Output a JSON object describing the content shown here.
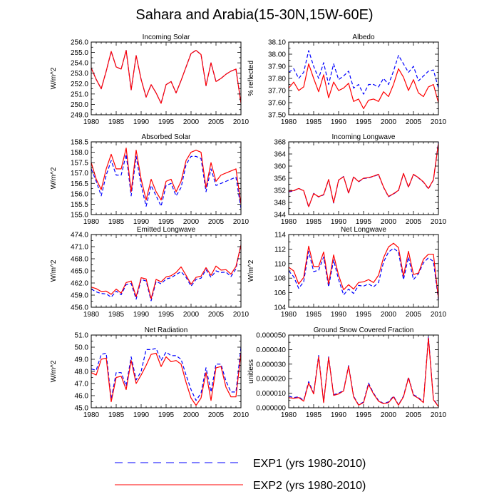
{
  "figure_title": "Sahara and Arabia(15-30N,15W-60E)",
  "legend": [
    {
      "label": "EXP1 (yrs 1980-2010)",
      "color": "#0000ff",
      "dash": "dashed"
    },
    {
      "label": "EXP2 (yrs 1980-2010)",
      "color": "#ff0000",
      "dash": "solid"
    }
  ],
  "chart_data": [
    {
      "type": "line",
      "title": "Incoming Solar",
      "ylabel": "W/m^2",
      "xlim": [
        1980,
        2010
      ],
      "ylim": [
        249.0,
        256.0
      ],
      "xticks": [
        1980,
        1985,
        1990,
        1995,
        2000,
        2005,
        2010
      ],
      "yticks": [
        249.0,
        250.0,
        251.0,
        252.0,
        253.0,
        254.0,
        255.0,
        256.0
      ],
      "ytick_labels": [
        "249.0",
        "250.0",
        "251.0",
        "252.0",
        "253.0",
        "254.0",
        "255.0",
        "256.0"
      ],
      "x": [
        1980,
        1981,
        1982,
        1983,
        1984,
        1985,
        1986,
        1987,
        1988,
        1989,
        1990,
        1991,
        1992,
        1993,
        1994,
        1995,
        1996,
        1997,
        1998,
        1999,
        2000,
        2001,
        2002,
        2003,
        2004,
        2005,
        2006,
        2007,
        2008,
        2009,
        2010
      ],
      "series": [
        {
          "name": "EXP1 (yrs 1980-2010)",
          "values": [
            253.5,
            252.4,
            251.5,
            253.2,
            255.1,
            253.6,
            253.4,
            255.2,
            251.4,
            254.7,
            252.4,
            250.7,
            251.9,
            251.1,
            250.1,
            251.9,
            252.2,
            251.1,
            252.3,
            253.6,
            254.9,
            255.2,
            254.8,
            251.8,
            254.0,
            252.2,
            252.5,
            252.9,
            253.2,
            253.4,
            250.1
          ]
        },
        {
          "name": "EXP2 (yrs 1980-2010)",
          "values": [
            253.5,
            252.4,
            251.5,
            253.2,
            255.1,
            253.6,
            253.4,
            255.2,
            251.4,
            254.7,
            252.4,
            250.7,
            251.9,
            251.1,
            250.1,
            251.9,
            252.2,
            251.1,
            252.3,
            253.6,
            254.9,
            255.2,
            254.8,
            251.8,
            254.0,
            252.2,
            252.5,
            252.9,
            253.2,
            253.4,
            250.1
          ]
        }
      ]
    },
    {
      "type": "line",
      "title": "Albedo",
      "ylabel": "% reflected",
      "xlim": [
        1980,
        2010
      ],
      "ylim": [
        37.5,
        38.1
      ],
      "xticks": [
        1980,
        1985,
        1990,
        1995,
        2000,
        2005,
        2010
      ],
      "yticks": [
        37.5,
        37.6,
        37.7,
        37.8,
        37.9,
        38.0,
        38.1
      ],
      "ytick_labels": [
        "37.50",
        "37.60",
        "37.70",
        "37.80",
        "37.90",
        "38.00",
        "38.10"
      ],
      "x": [
        1980,
        1981,
        1982,
        1983,
        1984,
        1985,
        1986,
        1987,
        1988,
        1989,
        1990,
        1991,
        1992,
        1993,
        1994,
        1995,
        1996,
        1997,
        1998,
        1999,
        2000,
        2001,
        2002,
        2003,
        2004,
        2005,
        2006,
        2007,
        2008,
        2009,
        2010
      ],
      "series": [
        {
          "name": "EXP1 (yrs 1980-2010)",
          "values": [
            37.85,
            37.88,
            37.8,
            37.85,
            38.03,
            37.9,
            37.8,
            37.93,
            37.75,
            37.92,
            37.79,
            37.82,
            37.86,
            37.72,
            37.75,
            37.67,
            37.75,
            37.75,
            37.73,
            37.8,
            37.75,
            37.86,
            37.99,
            37.92,
            37.85,
            37.9,
            37.78,
            37.82,
            37.86,
            37.87,
            37.72
          ]
        },
        {
          "name": "EXP2 (yrs 1980-2010)",
          "values": [
            37.72,
            37.77,
            37.7,
            37.73,
            37.92,
            37.8,
            37.69,
            37.83,
            37.64,
            37.77,
            37.7,
            37.72,
            37.76,
            37.61,
            37.63,
            37.55,
            37.62,
            37.63,
            37.61,
            37.69,
            37.65,
            37.75,
            37.88,
            37.81,
            37.7,
            37.79,
            37.68,
            37.65,
            37.73,
            37.75,
            37.6
          ]
        }
      ]
    },
    {
      "type": "line",
      "title": "Absorbed Solar",
      "ylabel": "W/m^2",
      "xlim": [
        1980,
        2010
      ],
      "ylim": [
        155.0,
        158.5
      ],
      "xticks": [
        1980,
        1985,
        1990,
        1995,
        2000,
        2005,
        2010
      ],
      "yticks": [
        155.0,
        155.5,
        156.0,
        156.5,
        157.0,
        157.5,
        158.0,
        158.5
      ],
      "ytick_labels": [
        "155.0",
        "155.5",
        "156.0",
        "156.5",
        "157.0",
        "157.5",
        "158.0",
        "158.5"
      ],
      "x": [
        1980,
        1981,
        1982,
        1983,
        1984,
        1985,
        1986,
        1987,
        1988,
        1989,
        1990,
        1991,
        1992,
        1993,
        1994,
        1995,
        1996,
        1997,
        1998,
        1999,
        2000,
        2001,
        2002,
        2003,
        2004,
        2005,
        2006,
        2007,
        2008,
        2009,
        2010
      ],
      "series": [
        {
          "name": "EXP1 (yrs 1980-2010)",
          "values": [
            157.2,
            156.6,
            155.9,
            156.9,
            157.6,
            156.9,
            156.9,
            157.9,
            155.9,
            157.8,
            156.4,
            155.4,
            156.4,
            155.9,
            155.4,
            156.4,
            156.5,
            155.9,
            156.3,
            157.4,
            157.8,
            157.8,
            157.7,
            156.1,
            157.2,
            156.4,
            156.5,
            156.6,
            156.7,
            156.8,
            155.3
          ]
        },
        {
          "name": "EXP2 (yrs 1980-2010)",
          "values": [
            157.5,
            156.7,
            156.2,
            157.2,
            157.9,
            157.2,
            157.2,
            158.2,
            156.1,
            158.1,
            156.7,
            155.7,
            156.7,
            156.1,
            155.7,
            156.6,
            156.7,
            156.1,
            156.6,
            157.6,
            158.0,
            158.1,
            158.0,
            156.3,
            157.5,
            156.6,
            156.9,
            157.0,
            157.1,
            157.2,
            155.5
          ]
        }
      ]
    },
    {
      "type": "line",
      "title": "Incoming Longwave",
      "ylabel": "",
      "xlim": [
        1980,
        2010
      ],
      "ylim": [
        344,
        368
      ],
      "xticks": [
        1980,
        1985,
        1990,
        1995,
        2000,
        2005,
        2010
      ],
      "yticks": [
        344,
        348,
        352,
        356,
        360,
        364,
        368
      ],
      "ytick_labels": [
        "344",
        "348",
        "352",
        "356",
        "360",
        "364",
        "368"
      ],
      "x": [
        1980,
        1981,
        1982,
        1983,
        1984,
        1985,
        1986,
        1987,
        1988,
        1989,
        1990,
        1991,
        1992,
        1993,
        1994,
        1995,
        1996,
        1997,
        1998,
        1999,
        2000,
        2001,
        2002,
        2003,
        2004,
        2005,
        2006,
        2007,
        2008,
        2009,
        2010
      ],
      "series": [
        {
          "name": "EXP1 (yrs 1980-2010)",
          "values": [
            351.5,
            351.8,
            352.7,
            351.8,
            346.5,
            351.0,
            349.8,
            350.5,
            355.5,
            347.8,
            355.3,
            356.6,
            351.0,
            356.5,
            354.8,
            355.9,
            356.1,
            356.6,
            357.2,
            353.0,
            349.9,
            350.8,
            351.9,
            357.5,
            353.0,
            357.2,
            356.1,
            354.7,
            352.5,
            355.4,
            368.0
          ]
        },
        {
          "name": "EXP2 (yrs 1980-2010)",
          "values": [
            351.7,
            351.9,
            352.6,
            351.9,
            346.6,
            350.9,
            349.9,
            350.6,
            355.6,
            347.9,
            355.4,
            356.5,
            351.1,
            356.4,
            354.9,
            356.0,
            356.2,
            356.7,
            357.3,
            353.1,
            350.0,
            350.9,
            352.0,
            357.6,
            353.1,
            357.3,
            356.2,
            354.8,
            352.6,
            355.5,
            367.5
          ]
        }
      ]
    },
    {
      "type": "line",
      "title": "Emitted Longwave",
      "ylabel": "W/m^2",
      "xlim": [
        1980,
        2010
      ],
      "ylim": [
        456.0,
        474.0
      ],
      "xticks": [
        1980,
        1985,
        1990,
        1995,
        2000,
        2005,
        2010
      ],
      "yticks": [
        456.0,
        459.0,
        462.0,
        465.0,
        468.0,
        471.0,
        474.0
      ],
      "ytick_labels": [
        "456.0",
        "459.0",
        "462.0",
        "465.0",
        "468.0",
        "471.0",
        "474.0"
      ],
      "x": [
        1980,
        1981,
        1982,
        1983,
        1984,
        1985,
        1986,
        1987,
        1988,
        1989,
        1990,
        1991,
        1992,
        1993,
        1994,
        1995,
        1996,
        1997,
        1998,
        1999,
        2000,
        2001,
        2002,
        2003,
        2004,
        2005,
        2006,
        2007,
        2008,
        2009,
        2010
      ],
      "series": [
        {
          "name": "EXP1 (yrs 1980-2010)",
          "values": [
            460.5,
            459.8,
            459.4,
            459.3,
            458.5,
            460.0,
            459.1,
            461.6,
            461.9,
            458.0,
            462.9,
            462.5,
            457.6,
            462.4,
            461.8,
            463.0,
            463.3,
            464.1,
            464.8,
            463.4,
            461.2,
            462.9,
            463.2,
            465.3,
            463.4,
            465.0,
            464.6,
            464.7,
            463.6,
            465.5,
            471.6
          ]
        },
        {
          "name": "EXP2 (yrs 1980-2010)",
          "values": [
            461.0,
            460.6,
            459.9,
            460.0,
            459.2,
            460.5,
            459.5,
            462.1,
            462.5,
            458.6,
            463.3,
            463.0,
            458.1,
            462.9,
            462.3,
            463.5,
            463.8,
            464.6,
            466.0,
            463.9,
            461.7,
            463.4,
            463.7,
            465.8,
            463.9,
            466.2,
            465.2,
            465.3,
            464.2,
            466.1,
            471.4
          ]
        }
      ]
    },
    {
      "type": "line",
      "title": "Net Longwave",
      "ylabel": "W/m^2",
      "xlim": [
        1980,
        2010
      ],
      "ylim": [
        104,
        114
      ],
      "xticks": [
        1980,
        1985,
        1990,
        1995,
        2000,
        2005,
        2010
      ],
      "yticks": [
        104,
        106,
        108,
        110,
        112,
        114
      ],
      "ytick_labels": [
        "104",
        "106",
        "108",
        "110",
        "112",
        "114"
      ],
      "x": [
        1980,
        1981,
        1982,
        1983,
        1984,
        1985,
        1986,
        1987,
        1988,
        1989,
        1990,
        1991,
        1992,
        1993,
        1994,
        1995,
        1996,
        1997,
        1998,
        1999,
        2000,
        2001,
        2002,
        2003,
        2004,
        2005,
        2006,
        2007,
        2008,
        2009,
        2010
      ],
      "series": [
        {
          "name": "EXP1 (yrs 1980-2010)",
          "values": [
            109.0,
            108.2,
            106.6,
            107.5,
            111.7,
            108.9,
            109.1,
            110.9,
            106.8,
            110.5,
            107.8,
            105.7,
            106.5,
            105.9,
            107.0,
            106.9,
            107.2,
            106.8,
            107.4,
            110.2,
            111.6,
            112.1,
            111.6,
            107.8,
            110.9,
            107.8,
            108.6,
            110.1,
            110.8,
            110.3,
            105.0
          ]
        },
        {
          "name": "EXP2 (yrs 1980-2010)",
          "values": [
            109.5,
            109.0,
            107.2,
            108.1,
            112.4,
            109.6,
            109.6,
            111.6,
            107.2,
            111.2,
            108.4,
            106.4,
            107.1,
            106.5,
            107.4,
            107.5,
            107.8,
            107.4,
            108.4,
            110.8,
            112.3,
            112.8,
            112.2,
            108.3,
            111.7,
            108.5,
            108.7,
            110.6,
            111.3,
            111.3,
            105.2
          ]
        }
      ]
    },
    {
      "type": "line",
      "title": "Net Radiation",
      "ylabel": "W/m^2",
      "xlim": [
        1980,
        2010
      ],
      "ylim": [
        45.0,
        51.0
      ],
      "xticks": [
        1980,
        1985,
        1990,
        1995,
        2000,
        2005,
        2010
      ],
      "yticks": [
        45.0,
        46.0,
        47.0,
        48.0,
        49.0,
        50.0,
        51.0
      ],
      "ytick_labels": [
        "45.0",
        "46.0",
        "47.0",
        "48.0",
        "49.0",
        "50.0",
        "51.0"
      ],
      "x": [
        1980,
        1981,
        1982,
        1983,
        1984,
        1985,
        1986,
        1987,
        1988,
        1989,
        1990,
        1991,
        1992,
        1993,
        1994,
        1995,
        1996,
        1997,
        1998,
        1999,
        2000,
        2001,
        2002,
        2003,
        2004,
        2005,
        2006,
        2007,
        2008,
        2009,
        2010
      ],
      "series": [
        {
          "name": "EXP1 (yrs 1980-2010)",
          "values": [
            48.2,
            48.1,
            49.4,
            49.5,
            45.7,
            47.9,
            47.9,
            46.8,
            49.2,
            47.3,
            48.0,
            49.8,
            49.8,
            49.9,
            48.9,
            49.6,
            49.3,
            49.3,
            49.0,
            47.7,
            46.5,
            45.6,
            46.2,
            48.3,
            46.3,
            48.6,
            48.6,
            47.2,
            46.3,
            46.3,
            50.0
          ]
        },
        {
          "name": "EXP2 (yrs 1980-2010)",
          "values": [
            47.9,
            47.7,
            49.0,
            49.1,
            45.5,
            47.5,
            47.6,
            46.5,
            48.9,
            47.0,
            47.7,
            48.5,
            49.4,
            49.5,
            48.4,
            49.2,
            48.8,
            48.9,
            48.6,
            47.1,
            45.8,
            45.2,
            45.8,
            47.9,
            45.6,
            48.3,
            48.4,
            46.7,
            45.9,
            45.9,
            49.5
          ]
        }
      ]
    },
    {
      "type": "line",
      "title": "Ground Snow Covered Fraction",
      "ylabel": "unitless",
      "xlim": [
        1980,
        2010
      ],
      "ylim": [
        0.0,
        5e-05
      ],
      "xticks": [
        1980,
        1985,
        1990,
        1995,
        2000,
        2005,
        2010
      ],
      "yticks": [
        0.0,
        1e-05,
        2e-05,
        3e-05,
        4e-05,
        5e-05
      ],
      "ytick_labels": [
        "0.000000",
        "0.000010",
        "0.000020",
        "0.000030",
        "0.000040",
        "0.000050"
      ],
      "x": [
        1980,
        1981,
        1982,
        1983,
        1984,
        1985,
        1986,
        1987,
        1988,
        1989,
        1990,
        1991,
        1992,
        1993,
        1994,
        1995,
        1996,
        1997,
        1998,
        1999,
        2000,
        2001,
        2002,
        2003,
        2004,
        2005,
        2006,
        2007,
        2008,
        2009,
        2010
      ],
      "series": [
        {
          "name": "EXP1 (yrs 1980-2010)",
          "values": [
            8e-06,
            7e-06,
            7.5e-06,
            5e-06,
            1.8e-05,
            1e-05,
            3.6e-05,
            4e-06,
            3.5e-05,
            9e-06,
            1e-05,
            1.2e-05,
            2.9e-05,
            8e-06,
            2e-06,
            4e-06,
            1.7e-05,
            1e-05,
            5e-06,
            3e-06,
            4e-06,
            8e-06,
            2e-06,
            8e-06,
            2.1e-05,
            9e-06,
            7e-06,
            4e-06,
            4.9e-05,
            6e-06,
            1e-06
          ]
        },
        {
          "name": "EXP2 (yrs 1980-2010)",
          "values": [
            7e-06,
            6.5e-06,
            7e-06,
            4.5e-06,
            1.7e-05,
            9.5e-06,
            3.5e-05,
            3.5e-06,
            3.45e-05,
            8.5e-06,
            9.5e-06,
            1.15e-05,
            2.85e-05,
            7.5e-06,
            1.8e-06,
            3.5e-06,
            1.6e-05,
            9.5e-06,
            4.5e-06,
            2.8e-06,
            3.5e-06,
            7.5e-06,
            1.8e-06,
            7.5e-06,
            2.05e-05,
            8.5e-06,
            6.5e-06,
            3.5e-06,
            4.8e-05,
            5.5e-06,
            8e-07
          ]
        }
      ]
    }
  ]
}
